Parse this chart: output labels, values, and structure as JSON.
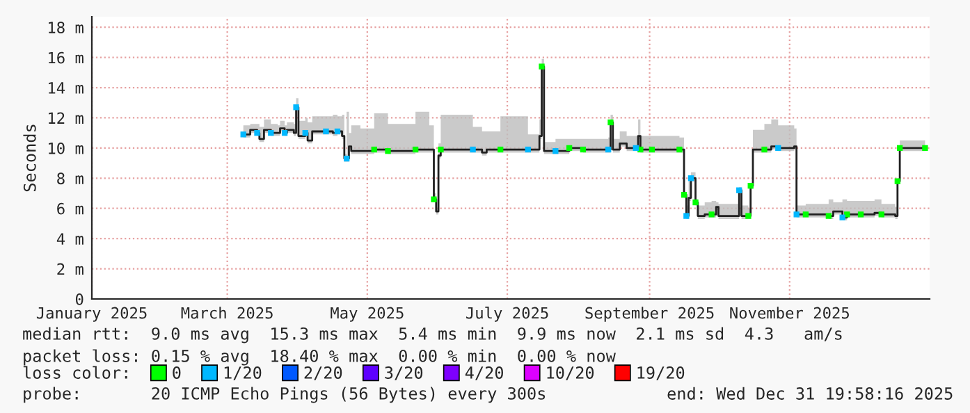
{
  "chart_data": {
    "type": "step",
    "ylabel": "Seconds",
    "legend_title": "loss color:",
    "xlim": [
      "2025-01-01",
      "2026-01-01"
    ],
    "xticks": [
      {
        "value": "2025-01-01",
        "label": "January 2025"
      },
      {
        "value": "2025-03-01",
        "label": "March 2025"
      },
      {
        "value": "2025-05-01",
        "label": "May 2025"
      },
      {
        "value": "2025-07-01",
        "label": "July 2025"
      },
      {
        "value": "2025-09-01",
        "label": "September 2025"
      },
      {
        "value": "2025-11-01",
        "label": "November 2025"
      }
    ],
    "ylim": [
      0,
      18.7
    ],
    "yticks": [
      0,
      {
        "value": 2,
        "label": "2 m"
      },
      {
        "value": 4,
        "label": "4 m"
      },
      {
        "value": 6,
        "label": "6 m"
      },
      {
        "value": 8,
        "label": "8 m"
      },
      {
        "value": 10,
        "label": "10 m"
      },
      {
        "value": 12,
        "label": "12 m"
      },
      {
        "value": 14,
        "label": "14 m"
      },
      {
        "value": 16,
        "label": "16 m"
      },
      {
        "value": 18,
        "label": "18 m"
      }
    ],
    "grid": true,
    "legend": "bottom",
    "line_style": "solid",
    "series": [
      {
        "color": "#202020",
        "x": [
          "2025-03-08",
          "2025-03-11",
          "2025-03-14",
          "2025-03-15",
          "2025-03-17",
          "2025-03-20",
          "2025-03-23",
          "2025-03-24",
          "2025-03-26",
          "2025-03-27",
          "2025-03-30",
          "2025-03-31",
          "2025-04-01",
          "2025-04-04",
          "2025-04-05",
          "2025-04-07",
          "2025-04-13",
          "2025-04-16",
          "2025-04-18",
          "2025-04-20",
          "2025-04-21",
          "2025-04-22",
          "2025-04-23",
          "2025-04-24",
          "2025-04-28",
          "2025-05-04",
          "2025-05-10",
          "2025-05-22",
          "2025-05-28",
          "2025-05-30",
          "2025-05-31",
          "2025-06-01",
          "2025-06-02",
          "2025-06-16",
          "2025-06-20",
          "2025-06-22",
          "2025-06-28",
          "2025-07-10",
          "2025-07-15",
          "2025-07-16",
          "2025-07-17",
          "2025-07-22",
          "2025-07-28",
          "2025-08-03",
          "2025-08-14",
          "2025-08-15",
          "2025-08-16",
          "2025-08-19",
          "2025-08-22",
          "2025-08-26",
          "2025-08-27",
          "2025-08-28",
          "2025-09-02",
          "2025-09-14",
          "2025-09-16",
          "2025-09-17",
          "2025-09-18",
          "2025-09-19",
          "2025-09-21",
          "2025-09-22",
          "2025-09-25",
          "2025-09-28",
          "2025-09-30",
          "2025-10-01",
          "2025-10-09",
          "2025-10-10",
          "2025-10-11",
          "2025-10-14",
          "2025-10-15",
          "2025-10-16",
          "2025-10-21",
          "2025-10-24",
          "2025-10-27",
          "2025-11-03",
          "2025-11-04",
          "2025-11-08",
          "2025-11-18",
          "2025-11-20",
          "2025-11-24",
          "2025-11-26",
          "2025-12-02",
          "2025-12-08",
          "2025-12-11",
          "2025-12-17",
          "2025-12-18",
          "2025-12-19",
          "2025-12-30"
        ],
        "values": [
          10.9,
          11.2,
          11.0,
          10.6,
          11.2,
          11.0,
          11.0,
          11.3,
          11.0,
          11.2,
          11.0,
          12.7,
          10.8,
          11.0,
          10.5,
          11.1,
          11.1,
          11.0,
          11.1,
          10.8,
          9.3,
          9.3,
          10.1,
          9.8,
          9.8,
          9.9,
          9.8,
          9.9,
          9.9,
          6.6,
          5.8,
          9.5,
          9.9,
          9.9,
          9.7,
          9.9,
          9.9,
          9.9,
          10.8,
          15.4,
          9.8,
          9.8,
          10.0,
          9.9,
          9.9,
          11.7,
          9.9,
          10.3,
          10.0,
          10.0,
          10.8,
          9.9,
          9.9,
          9.9,
          6.9,
          5.5,
          6.7,
          8.0,
          6.4,
          5.5,
          5.6,
          5.6,
          6.1,
          5.5,
          5.5,
          7.2,
          5.5,
          5.5,
          7.5,
          9.9,
          9.9,
          10.1,
          10.0,
          10.1,
          5.6,
          5.6,
          5.5,
          5.8,
          5.4,
          5.6,
          5.6,
          5.7,
          5.6,
          5.5,
          7.8,
          10.0,
          10.0
        ],
        "lower": [
          10.7,
          11.0,
          10.8,
          10.4,
          11.0,
          10.8,
          10.8,
          11.1,
          10.8,
          11.0,
          10.8,
          12.5,
          10.6,
          10.8,
          10.3,
          10.9,
          10.9,
          10.8,
          10.9,
          10.6,
          9.1,
          9.1,
          9.9,
          9.6,
          9.6,
          9.7,
          9.6,
          9.7,
          9.7,
          6.4,
          5.6,
          9.3,
          9.7,
          9.7,
          9.5,
          9.7,
          9.7,
          9.7,
          10.6,
          15.2,
          9.6,
          9.6,
          9.8,
          9.7,
          9.7,
          11.5,
          9.7,
          10.1,
          9.8,
          9.8,
          10.6,
          9.7,
          9.7,
          9.7,
          6.7,
          5.3,
          6.5,
          7.8,
          6.2,
          5.3,
          5.4,
          5.4,
          5.9,
          5.3,
          5.3,
          7.0,
          5.3,
          5.3,
          7.3,
          9.7,
          9.7,
          9.9,
          9.8,
          9.9,
          5.4,
          5.4,
          5.3,
          5.6,
          5.2,
          5.4,
          5.4,
          5.5,
          5.4,
          5.3,
          7.6,
          9.8,
          9.8
        ],
        "upper": [
          11.5,
          11.6,
          11.6,
          11.4,
          11.9,
          11.6,
          11.5,
          11.8,
          11.5,
          11.7,
          11.6,
          13.3,
          11.8,
          12.0,
          11.7,
          12.1,
          12.1,
          12.2,
          12.1,
          12.2,
          9.6,
          12.4,
          11.0,
          11.5,
          11.3,
          12.3,
          11.6,
          12.4,
          11.5,
          7.0,
          6.0,
          10.3,
          12.2,
          11.4,
          11.1,
          11.1,
          12.1,
          10.9,
          11.9,
          15.9,
          10.4,
          10.6,
          10.6,
          10.6,
          10.7,
          12.2,
          10.6,
          11.1,
          10.8,
          10.8,
          11.9,
          10.8,
          10.8,
          10.7,
          7.1,
          6.2,
          7.8,
          8.4,
          6.6,
          6.2,
          6.4,
          6.5,
          6.4,
          6.3,
          6.3,
          7.4,
          6.2,
          6.0,
          7.7,
          11.2,
          11.6,
          11.9,
          11.5,
          11.3,
          6.2,
          6.3,
          6.6,
          6.4,
          6.6,
          6.5,
          6.5,
          6.6,
          6.3,
          6.1,
          8.0,
          10.5,
          10.5
        ]
      },
      {
        "type": "scatter",
        "name": "0",
        "color": "#00ff00",
        "marker": "square",
        "x": [
          "2025-05-04",
          "2025-05-10",
          "2025-05-22",
          "2025-05-30",
          "2025-06-02",
          "2025-06-28",
          "2025-07-16",
          "2025-07-28",
          "2025-08-03",
          "2025-08-15",
          "2025-08-28",
          "2025-09-02",
          "2025-09-14",
          "2025-09-16",
          "2025-09-21",
          "2025-09-28",
          "2025-10-14",
          "2025-10-15",
          "2025-10-21",
          "2025-11-08",
          "2025-11-18",
          "2025-11-26",
          "2025-12-02",
          "2025-12-11",
          "2025-12-18",
          "2025-12-19",
          "2025-12-30"
        ],
        "values": [
          9.9,
          9.8,
          9.9,
          6.6,
          9.9,
          9.9,
          15.4,
          10.0,
          9.9,
          11.7,
          9.9,
          9.9,
          9.9,
          6.9,
          6.4,
          5.6,
          5.5,
          7.5,
          9.9,
          5.6,
          5.5,
          5.6,
          5.6,
          5.6,
          7.8,
          10.0,
          10.0
        ]
      },
      {
        "type": "scatter",
        "name": "1/20",
        "color": "#00b8ff",
        "marker": "square",
        "x": [
          "2025-03-08",
          "2025-03-14",
          "2025-03-20",
          "2025-03-26",
          "2025-03-31",
          "2025-04-04",
          "2025-04-13",
          "2025-04-18",
          "2025-04-22",
          "2025-06-16",
          "2025-07-10",
          "2025-07-22",
          "2025-08-14",
          "2025-08-26",
          "2025-09-17",
          "2025-09-19",
          "2025-10-10",
          "2025-10-27",
          "2025-11-04",
          "2025-11-24"
        ],
        "values": [
          10.9,
          11.0,
          11.0,
          11.0,
          12.7,
          11.0,
          11.1,
          11.1,
          9.3,
          9.9,
          9.9,
          9.8,
          9.9,
          10.0,
          5.5,
          8.0,
          7.2,
          10.0,
          5.6,
          5.4
        ]
      },
      {
        "type": "scatter",
        "name": "2/20",
        "color": "#0059ff",
        "marker": "square"
      },
      {
        "type": "scatter",
        "name": "3/20",
        "color": "#5e00ff",
        "marker": "square"
      },
      {
        "type": "scatter",
        "name": "4/20",
        "color": "#7e00ff",
        "marker": "square"
      },
      {
        "type": "scatter",
        "name": "10/20",
        "color": "#dd00ff",
        "marker": "square"
      },
      {
        "type": "scatter",
        "name": "19/20",
        "color": "#ff0000",
        "marker": "square"
      }
    ],
    "annotations": [
      "median rtt:  9.0 ms avg  15.3 ms max  5.4 ms min  9.9 ms now  2.1 ms sd  4.3   am/s",
      "packet loss: 0.15 % avg  18.40 % max  0.00 % min  0.00 % now",
      "probe:       20 ICMP Echo Pings (56 Bytes) every 300s",
      "end: Wed Dec 31 19:58:16 2025"
    ]
  }
}
